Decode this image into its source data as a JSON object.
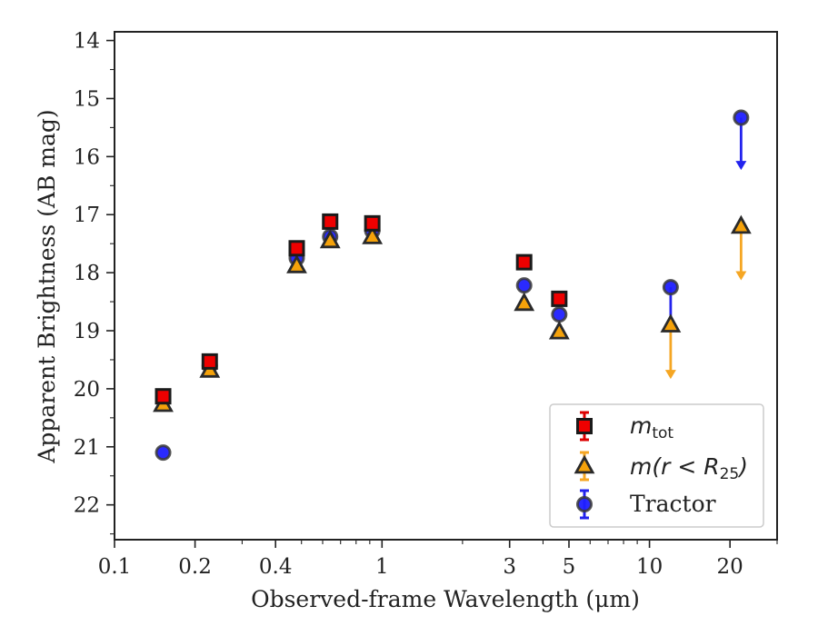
{
  "chart_data": {
    "type": "scatter",
    "title": "",
    "xlabel": "Observed-frame Wavelength (μm)",
    "ylabel": "Apparent Brightness (AB mag)",
    "x_scale": "log",
    "xlim": [
      0.1,
      30
    ],
    "ylim": [
      22.6,
      13.85
    ],
    "y_inverted": true,
    "grid": false,
    "legend_position": "lower-right",
    "xticks": [
      {
        "value": 0.1,
        "label": "0.1"
      },
      {
        "value": 0.2,
        "label": "0.2"
      },
      {
        "value": 0.4,
        "label": "0.4"
      },
      {
        "value": 1,
        "label": "1"
      },
      {
        "value": 3,
        "label": "3"
      },
      {
        "value": 5,
        "label": "5"
      },
      {
        "value": 10,
        "label": "10"
      },
      {
        "value": 20,
        "label": "20"
      }
    ],
    "yticks": [
      {
        "value": 14,
        "label": "14"
      },
      {
        "value": 15,
        "label": "15"
      },
      {
        "value": 16,
        "label": "16"
      },
      {
        "value": 17,
        "label": "17"
      },
      {
        "value": 18,
        "label": "18"
      },
      {
        "value": 19,
        "label": "19"
      },
      {
        "value": 20,
        "label": "20"
      },
      {
        "value": 21,
        "label": "21"
      },
      {
        "value": 22,
        "label": "22"
      }
    ],
    "series": [
      {
        "name": "Tractor",
        "marker": "circle",
        "face_color": "#1f1fff",
        "error_color": "#2222ee",
        "points": [
          {
            "x": 0.152,
            "y": 21.1
          },
          {
            "x": 0.227,
            "y": 19.6
          },
          {
            "x": 0.48,
            "y": 17.75
          },
          {
            "x": 0.64,
            "y": 17.38
          },
          {
            "x": 0.92,
            "y": 17.28
          },
          {
            "x": 3.4,
            "y": 18.22
          },
          {
            "x": 4.6,
            "y": 18.72
          },
          {
            "x": 12.0,
            "y": 18.25,
            "upper_limit": true,
            "arrow_to": 19.0
          },
          {
            "x": 22.0,
            "y": 15.33,
            "upper_limit": true,
            "arrow_to": 16.2
          }
        ]
      },
      {
        "name": "m(r < R25)",
        "marker": "triangle",
        "face_color": "#f5a20a",
        "error_color": "#f5a623",
        "points": [
          {
            "x": 0.152,
            "y": 20.27
          },
          {
            "x": 0.227,
            "y": 19.68
          },
          {
            "x": 0.48,
            "y": 17.88
          },
          {
            "x": 0.64,
            "y": 17.45
          },
          {
            "x": 0.92,
            "y": 17.38
          },
          {
            "x": 3.4,
            "y": 18.53
          },
          {
            "x": 4.6,
            "y": 19.02
          },
          {
            "x": 12.0,
            "y": 18.9,
            "upper_limit": true,
            "arrow_to": 19.8
          },
          {
            "x": 22.0,
            "y": 17.2,
            "upper_limit": true,
            "arrow_to": 18.1
          }
        ]
      },
      {
        "name": "m_tot",
        "marker": "square",
        "face_color": "#ee0000",
        "error_color": "#dd0000",
        "points": [
          {
            "x": 0.152,
            "y": 20.13
          },
          {
            "x": 0.227,
            "y": 19.53
          },
          {
            "x": 0.48,
            "y": 17.58
          },
          {
            "x": 0.64,
            "y": 17.12
          },
          {
            "x": 0.92,
            "y": 17.15
          },
          {
            "x": 3.4,
            "y": 17.82
          },
          {
            "x": 4.6,
            "y": 18.45
          }
        ]
      }
    ],
    "legend": [
      {
        "series": "m_tot",
        "base": "m",
        "sub": "tot"
      },
      {
        "series": "m(r < R25)",
        "base": "m(r < R",
        "sub": "25",
        "close": ")"
      },
      {
        "series": "Tractor",
        "text": "Tractor"
      }
    ]
  }
}
